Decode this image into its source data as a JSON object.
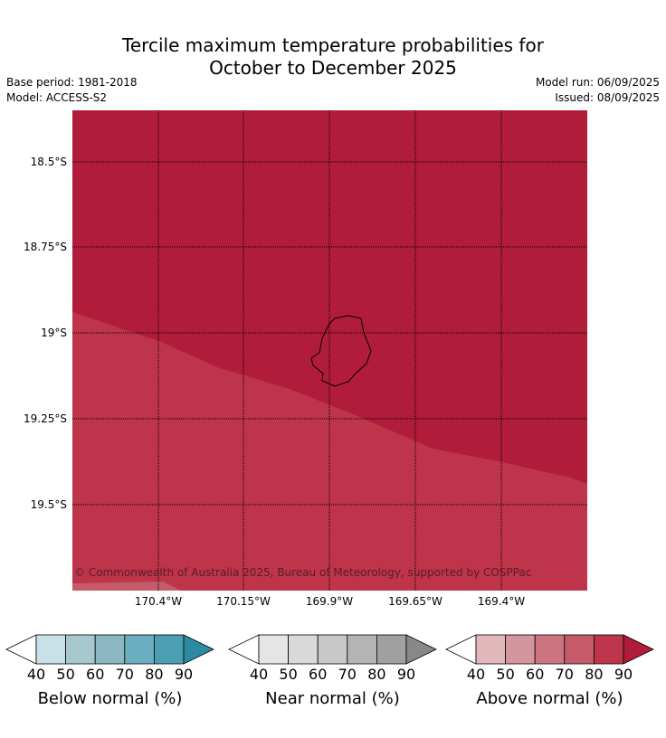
{
  "header": {
    "title_line1": "Tercile maximum temperature probabilities for",
    "title_line2": "October to December 2025",
    "base_period": "Base period: 1981-2018",
    "model": "Model: ACCESS-S2",
    "model_run": "Model run: 06/09/2025",
    "issued": "Issued: 08/09/2025"
  },
  "map": {
    "lat_labels": [
      "18.5°S",
      "18.75°S",
      "19°S",
      "19.25°S",
      "19.5°S"
    ],
    "lon_labels": [
      "170.4°W",
      "170.15°W",
      "169.9°W",
      "169.65°W",
      "169.4°W"
    ],
    "copyright": "© Commonwealth of Australia 2025, Bureau of Meteorology, supported by COSPPac",
    "colors": {
      "above_90": "#b01c3a",
      "above_80": "#bd344b",
      "coast": "#000000",
      "grid": "#000000"
    }
  },
  "colorbars": [
    {
      "title": "Below normal (%)",
      "labels": [
        "40",
        "50",
        "60",
        "70",
        "80",
        "90"
      ],
      "colors": [
        "#c8e1e8",
        "#a7c8cf",
        "#8bb7c3",
        "#6aaebf",
        "#4b9fb2",
        "#2c8ba3"
      ]
    },
    {
      "title": "Near normal (%)",
      "labels": [
        "40",
        "50",
        "60",
        "70",
        "80",
        "90"
      ],
      "colors": [
        "#e5e5e5",
        "#d9d9d9",
        "#c8c8c8",
        "#b4b4b4",
        "#a0a0a0",
        "#888888"
      ]
    },
    {
      "title": "Above normal (%)",
      "labels": [
        "40",
        "50",
        "60",
        "70",
        "80",
        "90"
      ],
      "colors": [
        "#e2b8bd",
        "#d4969e",
        "#cc7580",
        "#c55a69",
        "#bd344b",
        "#b01c3a"
      ]
    }
  ]
}
